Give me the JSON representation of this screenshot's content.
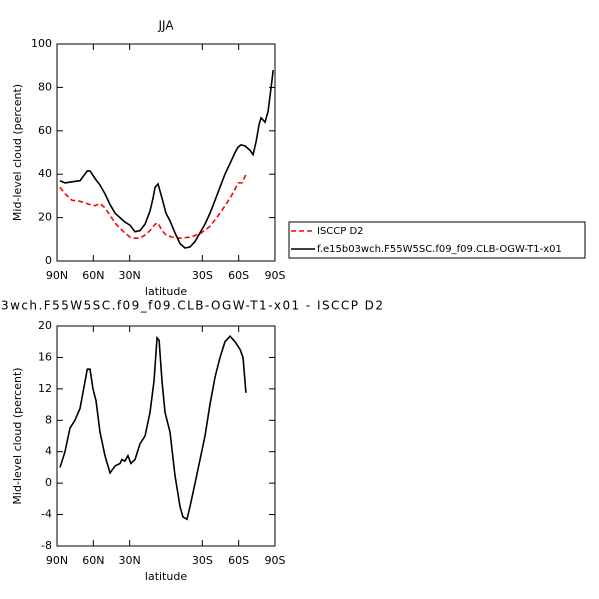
{
  "chart_data": [
    {
      "type": "line",
      "title": "JJA",
      "xlabel": "latitude",
      "ylabel": "Mid-level cloud (percent)",
      "xlim": [
        90,
        -90
      ],
      "ylim": [
        0,
        100
      ],
      "xticks": [
        {
          "value": 90,
          "label": "90N"
        },
        {
          "value": 60,
          "label": "60N"
        },
        {
          "value": 30,
          "label": "30N"
        },
        {
          "value": -30,
          "label": "30S"
        },
        {
          "value": -60,
          "label": "60S"
        },
        {
          "value": -90,
          "label": "90S"
        }
      ],
      "yticks": [
        0,
        20,
        40,
        60,
        80,
        100
      ],
      "legend": "right",
      "series": [
        {
          "name": "ISCCP D2",
          "color": "#ff0000",
          "dash": true,
          "x": [
            87.5,
            83.4,
            77.6,
            71,
            62.7,
            58.6,
            54.5,
            50.4,
            46.2,
            42,
            38,
            34,
            29.7,
            25.6,
            21.5,
            17.3,
            13.2,
            9,
            6.6,
            3.3,
            0,
            -5,
            -11.6,
            -19.8,
            -28.1,
            -36.3,
            -44.6,
            -52.9,
            -57,
            -59.5,
            -62.8,
            -66
          ],
          "values": [
            34,
            31,
            28,
            27.5,
            26,
            25.5,
            26.5,
            24.5,
            21,
            17.5,
            15,
            13,
            11,
            10.5,
            10.5,
            12,
            14,
            17,
            17.5,
            14,
            12,
            11,
            10.5,
            11,
            12.5,
            16,
            22,
            29,
            33,
            36,
            36,
            40
          ]
        },
        {
          "name": "f.e15b03wch.F55W5SC.f09_f09.CLB-OGW-T1-x01",
          "color": "#000000",
          "dash": false,
          "x": [
            87.5,
            83.4,
            77.6,
            71,
            65,
            62.7,
            58.6,
            54.5,
            50.4,
            46.2,
            42,
            38,
            34,
            29.7,
            25.6,
            21.5,
            17.3,
            13.2,
            10.7,
            9,
            6.6,
            3.3,
            0,
            -3.3,
            -7.4,
            -11.6,
            -15.7,
            -19.8,
            -24,
            -28.1,
            -32.2,
            -36.3,
            -40.5,
            -44.6,
            -48.7,
            -52.9,
            -57,
            -59.5,
            -62,
            -65.3,
            -69.4,
            -71.9,
            -74.4,
            -76.9,
            -78.5,
            -81.8,
            -84.3,
            -86.8,
            -88.5
          ],
          "values": [
            37,
            36,
            36.5,
            37,
            41.5,
            41.5,
            38,
            35,
            31,
            26,
            22,
            20,
            18,
            16.5,
            13.5,
            14,
            17,
            23,
            29,
            34,
            35.5,
            29,
            22,
            18.5,
            13,
            8,
            6,
            6.5,
            9,
            13,
            17,
            22,
            28,
            34,
            40,
            45,
            50,
            52.5,
            53.5,
            53,
            51,
            49,
            55,
            63,
            66,
            64,
            69,
            80,
            88
          ]
        }
      ]
    },
    {
      "type": "line",
      "title": "3wch.F55W5SC.f09_f09.CLB-OGW-T1-x01 - ISCCP D2",
      "xlabel": "latitude",
      "ylabel": "Mid-level cloud (percent)",
      "xlim": [
        90,
        -90
      ],
      "ylim": [
        -8,
        20
      ],
      "xticks": [
        {
          "value": 90,
          "label": "90N"
        },
        {
          "value": 60,
          "label": "60N"
        },
        {
          "value": 30,
          "label": "30N"
        },
        {
          "value": -30,
          "label": "30S"
        },
        {
          "value": -60,
          "label": "60S"
        },
        {
          "value": -90,
          "label": "90S"
        }
      ],
      "yticks": [
        -8,
        -4,
        0,
        4,
        8,
        12,
        16,
        20
      ],
      "series": [
        {
          "color": "#000000",
          "dash": false,
          "x": [
            87.5,
            83.4,
            79.3,
            75.2,
            71,
            65,
            62.7,
            60.3,
            57.8,
            54.5,
            50.4,
            46.2,
            42,
            38,
            36.4,
            34,
            31.4,
            29,
            25.6,
            21.5,
            17.3,
            13.2,
            9.9,
            7.4,
            5.7,
            3.3,
            0.8,
            -3.3,
            -7.4,
            -11.6,
            -14,
            -17.3,
            -19.8,
            -24,
            -28.1,
            -32.2,
            -36.3,
            -40.5,
            -44.6,
            -48.7,
            -52.9,
            -57,
            -61.2,
            -63.6,
            -66
          ],
          "values": [
            2,
            4,
            7,
            8,
            9.5,
            14.5,
            14.5,
            12,
            10.5,
            6.5,
            3.5,
            1.3,
            2.2,
            2.5,
            3,
            2.8,
            3.5,
            2.5,
            3,
            5,
            6,
            9,
            13,
            18.5,
            18.2,
            13,
            9,
            6.5,
            1,
            -3,
            -4.3,
            -4.6,
            -3,
            0,
            3,
            6,
            10,
            13.5,
            16,
            18,
            18.7,
            18,
            17,
            16,
            11.5
          ]
        }
      ]
    }
  ]
}
